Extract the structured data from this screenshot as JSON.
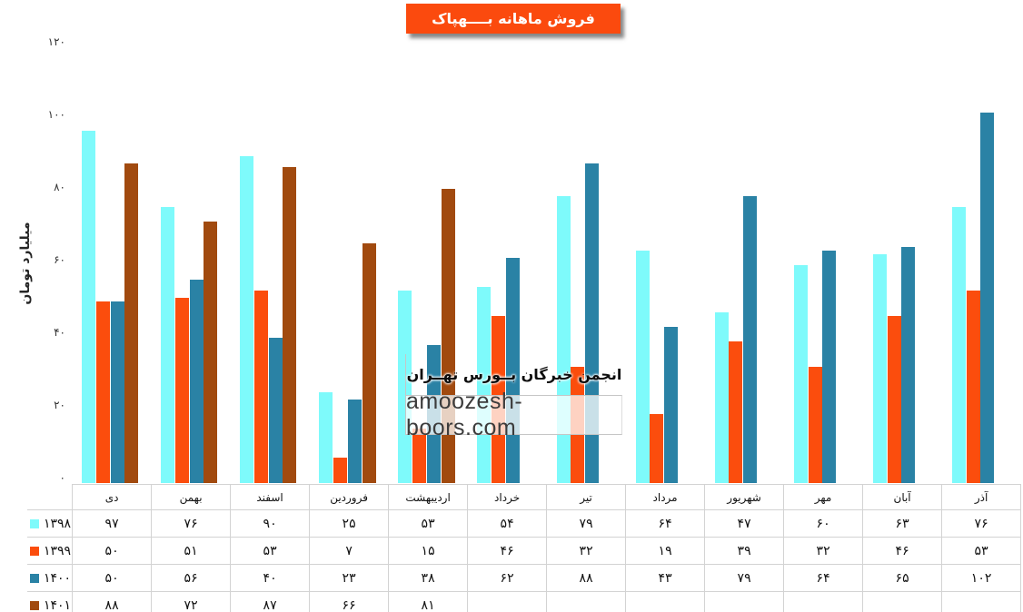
{
  "title_banner": {
    "text": "فروش ماهانه بــــهپاک",
    "bg_color": "#FB4A0E",
    "text_color": "#FFFFFF"
  },
  "watermark": {
    "line1": "انجمن خبرگان بــورس تهــران",
    "line2": "amoozesh-boors.com"
  },
  "chart_data": {
    "type": "bar",
    "title": "فروش ماهانه بــــهپاک",
    "ylabel": "میلیارد تومان",
    "ylim": [
      0,
      120
    ],
    "ytick_step": 20,
    "yticks_display": [
      "۰",
      "۲۰",
      "۴۰",
      "۶۰",
      "۸۰",
      "۱۰۰",
      "۱۲۰"
    ],
    "grid": false,
    "legend_position": "table-left-column",
    "digit_style": "persian",
    "categories": [
      "دی",
      "بهمن",
      "اسفند",
      "فروردین",
      "اردیبهشت",
      "خرداد",
      "تیر",
      "مرداد",
      "شهریور",
      "مهر",
      "آبان",
      "آذر"
    ],
    "series": [
      {
        "name": "۱۳۹۸",
        "year": 1398,
        "color": "#7EFAFB",
        "values": [
          97,
          76,
          90,
          25,
          53,
          54,
          79,
          64,
          47,
          60,
          63,
          76
        ]
      },
      {
        "name": "۱۳۹۹",
        "year": 1399,
        "color": "#FB4D0D",
        "values": [
          50,
          51,
          53,
          7,
          15,
          46,
          32,
          19,
          39,
          32,
          46,
          53
        ]
      },
      {
        "name": "۱۴۰۰",
        "year": 1400,
        "color": "#2A82A5",
        "values": [
          50,
          56,
          40,
          23,
          38,
          62,
          88,
          43,
          79,
          64,
          65,
          102
        ]
      },
      {
        "name": "۱۴۰۱",
        "year": 1401,
        "color": "#A14A0F",
        "values": [
          88,
          72,
          87,
          66,
          81,
          null,
          null,
          null,
          null,
          null,
          null,
          null
        ]
      }
    ]
  }
}
